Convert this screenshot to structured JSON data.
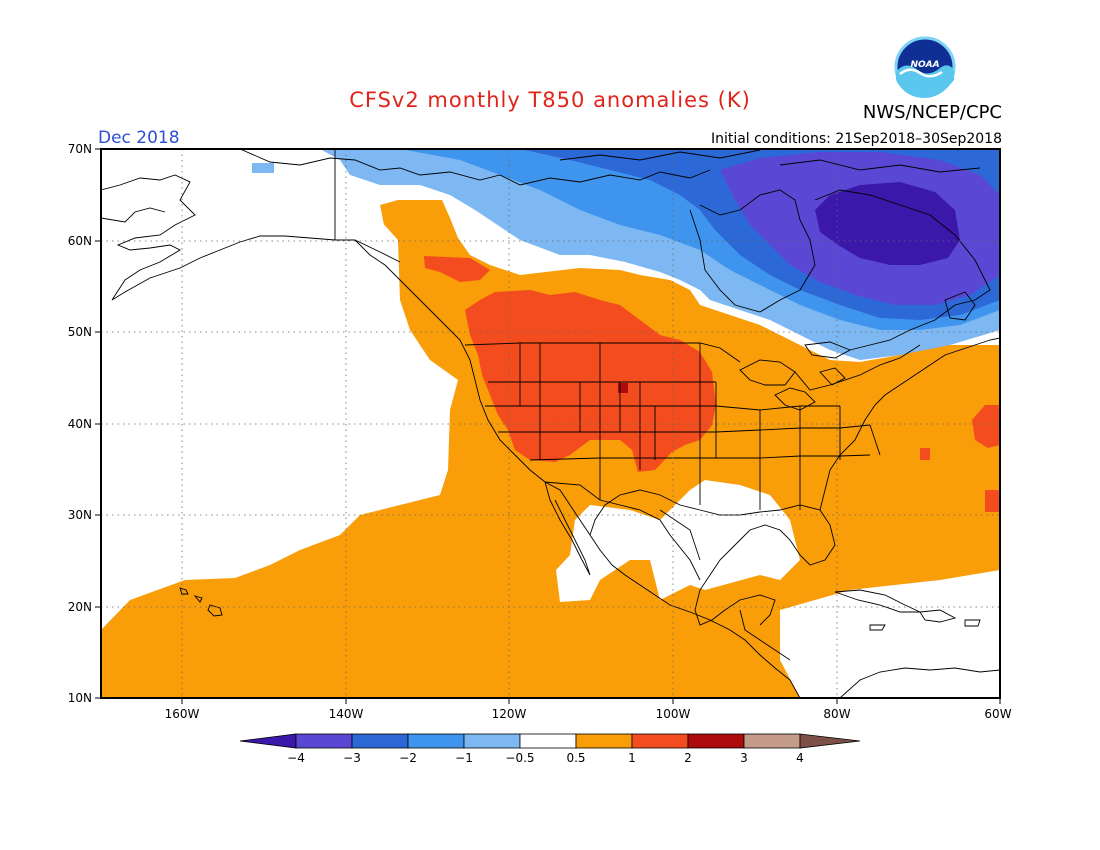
{
  "title": "CFSv2 monthly T850 anomalies (K)",
  "valid_month": "Dec 2018",
  "initial_conditions": "Initial conditions: 21Sep2018–30Sep2018",
  "agency": "NWS/NCEP/CPC",
  "logo_text": "NOAA",
  "map": {
    "lat_labels": [
      "70N",
      "60N",
      "50N",
      "40N",
      "30N",
      "20N",
      "10N"
    ],
    "lon_labels": [
      "160W",
      "140W",
      "120W",
      "100W",
      "80W",
      "60W"
    ],
    "extent": {
      "lon": [
        -171,
        -60
      ],
      "lat": [
        10,
        70
      ]
    }
  },
  "colorbar": {
    "labels": [
      "−4",
      "−3",
      "−2",
      "−1",
      "−0.5",
      "0.5",
      "1",
      "2",
      "3",
      "4"
    ],
    "colors": [
      "#3b18a9",
      "#5a48d4",
      "#2c69d6",
      "#3f95ee",
      "#7db8f2",
      "#ffffff",
      "#f99d08",
      "#f34c1e",
      "#ad0c0c",
      "#c59b8a",
      "#7c5046"
    ]
  }
}
